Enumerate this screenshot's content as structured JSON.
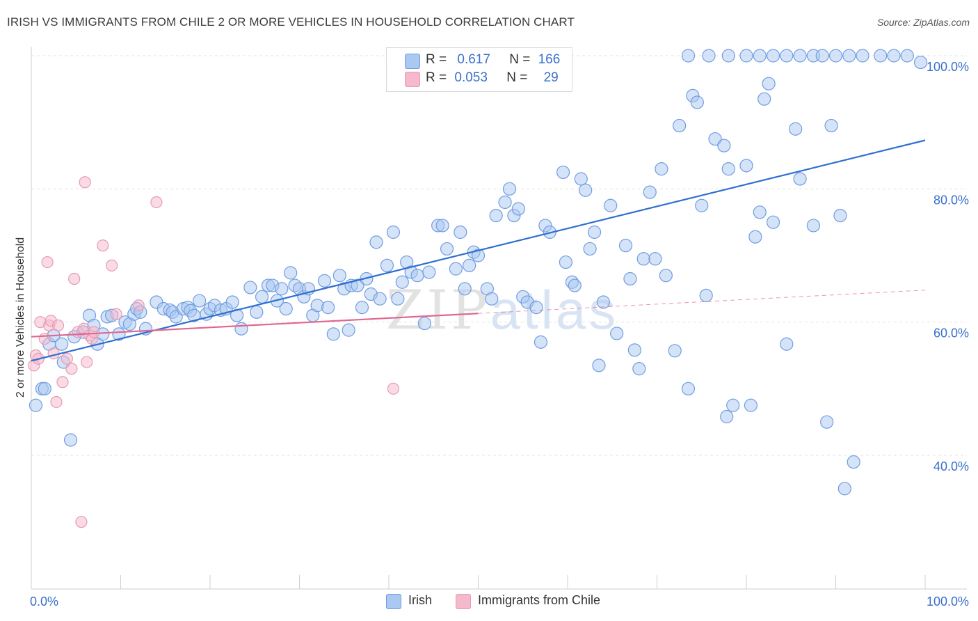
{
  "title": "IRISH VS IMMIGRANTS FROM CHILE 2 OR MORE VEHICLES IN HOUSEHOLD CORRELATION CHART",
  "source": "Source: ZipAtlas.com",
  "watermark": {
    "part1": "ZIP",
    "part2": "atlas"
  },
  "legend": {
    "irish": {
      "r_label": "R =",
      "r_value": "0.617",
      "n_label": "N =",
      "n_value": "166"
    },
    "chile": {
      "r_label": "R =",
      "r_value": "0.053",
      "n_label": "N =",
      "n_value": "29"
    }
  },
  "bottom_legend": {
    "irish": "Irish",
    "chile": "Immigrants from Chile"
  },
  "colors": {
    "irish_fill": "#a9c8f2",
    "irish_stroke": "#6f9de0",
    "irish_line": "#2f6fd0",
    "chile_fill": "#f6b8cb",
    "chile_stroke": "#e89ab2",
    "chile_line": "#e06890",
    "tick_label": "#3a6fcc"
  },
  "chart_data": {
    "type": "scatter",
    "title": "IRISH VS IMMIGRANTS FROM CHILE 2 OR MORE VEHICLES IN HOUSEHOLD CORRELATION CHART",
    "xlabel": "",
    "ylabel": "2 or more Vehicles in Household",
    "xlim": [
      0,
      100
    ],
    "ylim": [
      20,
      101
    ],
    "x_tick_labels": [
      "0.0%",
      "100.0%"
    ],
    "y_ticks": [
      40,
      60,
      80,
      100
    ],
    "y_tick_labels": [
      "40.0%",
      "60.0%",
      "80.0%",
      "100.0%"
    ],
    "grid": true,
    "legend_position": "top-center",
    "series": [
      {
        "name": "Irish",
        "trend": {
          "x": [
            0,
            100
          ],
          "y": [
            54.2,
            87.3
          ]
        },
        "points": [
          [
            0.5,
            47.5
          ],
          [
            1.2,
            50
          ],
          [
            1.5,
            50
          ],
          [
            2,
            56.7
          ],
          [
            2.5,
            58
          ],
          [
            3.4,
            56.7
          ],
          [
            3.6,
            54
          ],
          [
            4.4,
            42.3
          ],
          [
            4.8,
            57.8
          ],
          [
            5.8,
            58.5
          ],
          [
            6.5,
            61
          ],
          [
            7,
            59.5
          ],
          [
            7.4,
            56.7
          ],
          [
            8,
            58.2
          ],
          [
            8.5,
            60.8
          ],
          [
            9,
            61
          ],
          [
            9.8,
            58.2
          ],
          [
            10.5,
            60
          ],
          [
            11,
            59.7
          ],
          [
            11.5,
            61.2
          ],
          [
            11.8,
            62
          ],
          [
            12.2,
            61.5
          ],
          [
            12.8,
            59
          ],
          [
            14,
            63
          ],
          [
            14.8,
            62
          ],
          [
            15.5,
            61.8
          ],
          [
            15.8,
            61.5
          ],
          [
            16.2,
            60.8
          ],
          [
            17,
            62
          ],
          [
            17.5,
            62.2
          ],
          [
            17.8,
            61.7
          ],
          [
            18.2,
            61
          ],
          [
            18.8,
            63.2
          ],
          [
            19.6,
            61.2
          ],
          [
            20,
            62
          ],
          [
            20.5,
            62.5
          ],
          [
            21.2,
            61.8
          ],
          [
            21.8,
            62
          ],
          [
            22.5,
            63
          ],
          [
            23,
            61
          ],
          [
            23.5,
            59
          ],
          [
            24.5,
            65.2
          ],
          [
            25.2,
            61.5
          ],
          [
            25.8,
            63.8
          ],
          [
            26.5,
            65.5
          ],
          [
            27,
            65.5
          ],
          [
            27.5,
            63.2
          ],
          [
            28,
            65
          ],
          [
            28.5,
            62
          ],
          [
            29,
            67.4
          ],
          [
            29.5,
            65.5
          ],
          [
            30,
            65
          ],
          [
            30.5,
            63.8
          ],
          [
            31,
            65
          ],
          [
            31.5,
            61
          ],
          [
            32,
            62.5
          ],
          [
            32.8,
            66.2
          ],
          [
            33.2,
            62.2
          ],
          [
            33.8,
            58.2
          ],
          [
            34.5,
            67
          ],
          [
            35,
            65
          ],
          [
            35.5,
            58.8
          ],
          [
            35.8,
            65.5
          ],
          [
            36.5,
            65.5
          ],
          [
            37,
            62.2
          ],
          [
            37.5,
            66.5
          ],
          [
            38,
            64.2
          ],
          [
            38.6,
            72
          ],
          [
            39,
            63.5
          ],
          [
            39.8,
            68.5
          ],
          [
            40.5,
            73.5
          ],
          [
            41,
            63.5
          ],
          [
            41.5,
            66
          ],
          [
            42,
            69
          ],
          [
            42.5,
            67.5
          ],
          [
            43.2,
            67
          ],
          [
            44,
            59.8
          ],
          [
            44.5,
            67.5
          ],
          [
            45.5,
            74.5
          ],
          [
            46,
            74.5
          ],
          [
            46.5,
            71
          ],
          [
            47.5,
            68
          ],
          [
            48,
            73.5
          ],
          [
            48.5,
            65
          ],
          [
            49,
            68.5
          ],
          [
            49.5,
            70.5
          ],
          [
            50,
            70
          ],
          [
            51,
            65
          ],
          [
            51.5,
            63.5
          ],
          [
            52,
            76
          ],
          [
            53,
            78
          ],
          [
            53.5,
            80
          ],
          [
            54,
            76
          ],
          [
            54.5,
            77
          ],
          [
            55,
            63.8
          ],
          [
            55.5,
            63
          ],
          [
            56.5,
            62.2
          ],
          [
            57,
            57
          ],
          [
            57.5,
            74.5
          ],
          [
            58,
            73.5
          ],
          [
            59.5,
            82.5
          ],
          [
            59.8,
            69
          ],
          [
            60.5,
            66
          ],
          [
            60.8,
            65.5
          ],
          [
            61.5,
            81.5
          ],
          [
            62,
            79.8
          ],
          [
            62.5,
            71
          ],
          [
            63,
            73.5
          ],
          [
            63.5,
            53.5
          ],
          [
            64,
            63
          ],
          [
            64.8,
            77.5
          ],
          [
            65.5,
            58.3
          ],
          [
            66.5,
            71.5
          ],
          [
            67,
            66.5
          ],
          [
            67.5,
            55.8
          ],
          [
            68,
            53
          ],
          [
            68.5,
            69.5
          ],
          [
            69.2,
            79.5
          ],
          [
            69.8,
            69.5
          ],
          [
            70.5,
            83
          ],
          [
            71,
            67
          ],
          [
            72,
            55.7
          ],
          [
            72.5,
            89.5
          ],
          [
            73.5,
            50
          ],
          [
            74,
            94
          ],
          [
            74.5,
            93
          ],
          [
            75,
            77.5
          ],
          [
            75.5,
            64
          ],
          [
            76.5,
            87.5
          ],
          [
            77.5,
            86.5
          ],
          [
            77.8,
            45.8
          ],
          [
            78,
            83
          ],
          [
            78.5,
            47.5
          ],
          [
            80,
            83.5
          ],
          [
            80.5,
            47.5
          ],
          [
            81,
            72.8
          ],
          [
            81.5,
            76.5
          ],
          [
            82,
            93.5
          ],
          [
            82.5,
            95.8
          ],
          [
            83,
            75
          ],
          [
            84.5,
            56.7
          ],
          [
            85.5,
            89
          ],
          [
            86,
            81.5
          ],
          [
            87.5,
            74.5
          ],
          [
            89,
            45
          ],
          [
            89.5,
            89.5
          ],
          [
            90.5,
            76
          ],
          [
            91,
            35
          ],
          [
            92,
            39
          ],
          [
            73.5,
            100
          ],
          [
            75.8,
            100
          ],
          [
            78,
            100
          ],
          [
            80,
            100
          ],
          [
            81.5,
            100
          ],
          [
            83,
            100
          ],
          [
            84.5,
            100
          ],
          [
            86,
            100
          ],
          [
            87.5,
            100
          ],
          [
            88.5,
            100
          ],
          [
            90,
            100
          ],
          [
            91.5,
            100
          ],
          [
            93,
            100
          ],
          [
            95,
            100
          ],
          [
            96.5,
            100
          ],
          [
            98,
            100
          ],
          [
            99.5,
            99
          ]
        ]
      },
      {
        "name": "Immigrants from Chile",
        "trend": {
          "x": [
            0,
            50
          ],
          "y": [
            57.8,
            61.3
          ],
          "dashed_to": {
            "x": 100,
            "y": 64.8
          }
        },
        "points": [
          [
            0.3,
            53.5
          ],
          [
            0.5,
            55
          ],
          [
            0.8,
            54.5
          ],
          [
            1,
            60
          ],
          [
            1.5,
            57.5
          ],
          [
            1.8,
            69
          ],
          [
            2,
            59.5
          ],
          [
            2.2,
            60.2
          ],
          [
            2.5,
            55.3
          ],
          [
            2.8,
            48
          ],
          [
            3,
            59.5
          ],
          [
            3.5,
            51
          ],
          [
            4,
            54.5
          ],
          [
            4.5,
            53
          ],
          [
            4.8,
            66.5
          ],
          [
            5.2,
            58.5
          ],
          [
            5.6,
            30
          ],
          [
            5.9,
            59
          ],
          [
            6,
            81
          ],
          [
            6.2,
            54
          ],
          [
            6.5,
            58
          ],
          [
            6.8,
            57.5
          ],
          [
            7,
            58.5
          ],
          [
            8,
            71.5
          ],
          [
            9,
            68.5
          ],
          [
            9.5,
            61.2
          ],
          [
            12,
            62.5
          ],
          [
            14,
            78
          ],
          [
            40.5,
            50
          ]
        ]
      }
    ]
  }
}
